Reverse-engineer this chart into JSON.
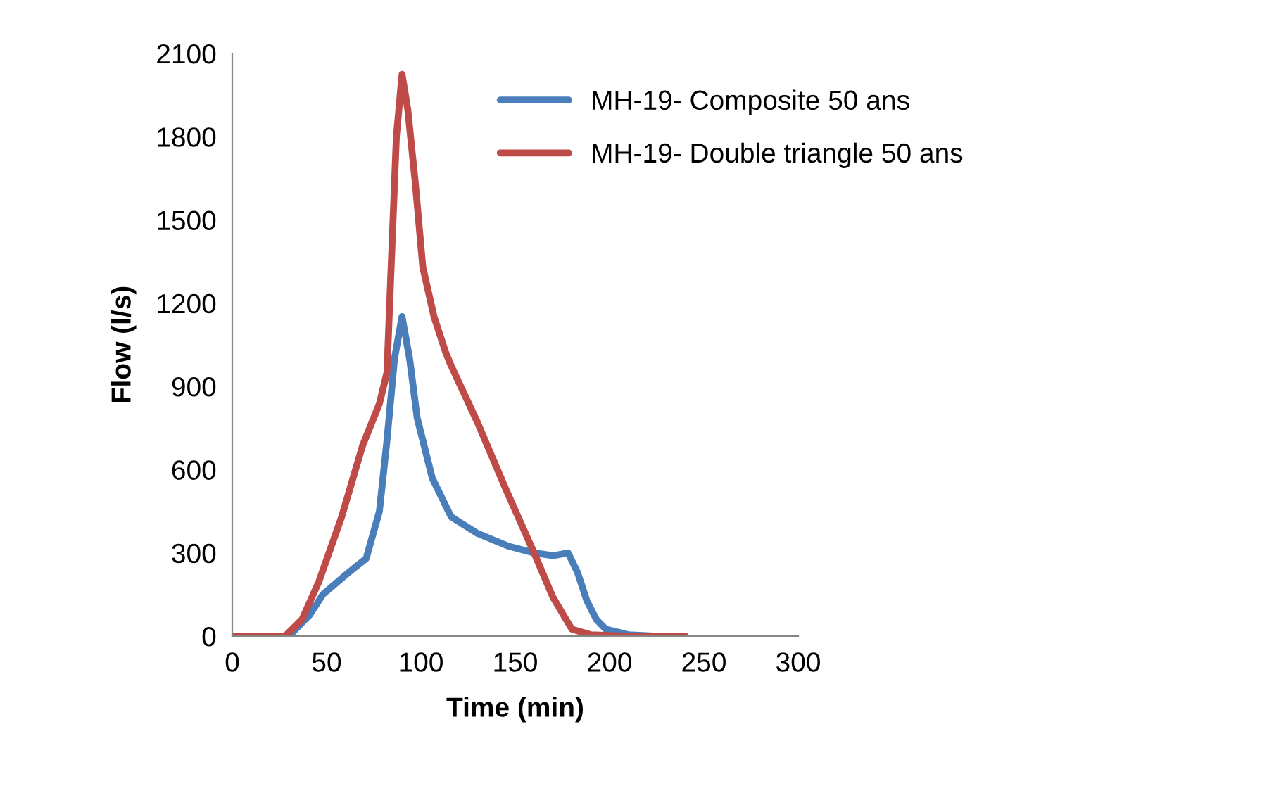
{
  "chart_data": {
    "type": "line",
    "xlabel": "Time (min)",
    "ylabel": "Flow (l/s)",
    "xlim": [
      0,
      300
    ],
    "xticks": [
      0,
      50,
      100,
      150,
      200,
      250,
      300
    ],
    "ylim": [
      0,
      2100
    ],
    "yticks": [
      0,
      300,
      600,
      900,
      1200,
      1500,
      1800,
      2100
    ],
    "grid": false,
    "legend": "top right",
    "marker": "none",
    "line_style": "solid",
    "series": [
      {
        "name": "MH-19- Composite 50 ans",
        "color": "#4a7ebb",
        "x": [
          0,
          30,
          41,
          48,
          60,
          71,
          78,
          82,
          86,
          90,
          94,
          98,
          106,
          116,
          130,
          146,
          160,
          170,
          178,
          183,
          188,
          193,
          198,
          210,
          225,
          240
        ],
        "values": [
          0,
          0,
          76,
          150,
          220,
          280,
          450,
          705,
          1000,
          1152,
          1000,
          787,
          570,
          430,
          370,
          325,
          300,
          290,
          300,
          230,
          127,
          60,
          25,
          5,
          0,
          0
        ]
      },
      {
        "name": "MH-19- Double triangle 50 ans",
        "color": "#be4b48",
        "x": [
          0,
          28,
          37,
          46,
          58,
          69,
          78,
          82,
          84,
          87,
          90,
          93,
          97,
          101,
          107,
          113,
          116,
          130,
          145,
          160,
          170,
          180,
          190,
          210,
          240
        ],
        "values": [
          0,
          0,
          60,
          198,
          430,
          685,
          838,
          950,
          1294,
          1800,
          2025,
          1900,
          1635,
          1330,
          1150,
          1025,
          975,
          770,
          530,
          300,
          140,
          25,
          5,
          0,
          0
        ]
      }
    ]
  }
}
